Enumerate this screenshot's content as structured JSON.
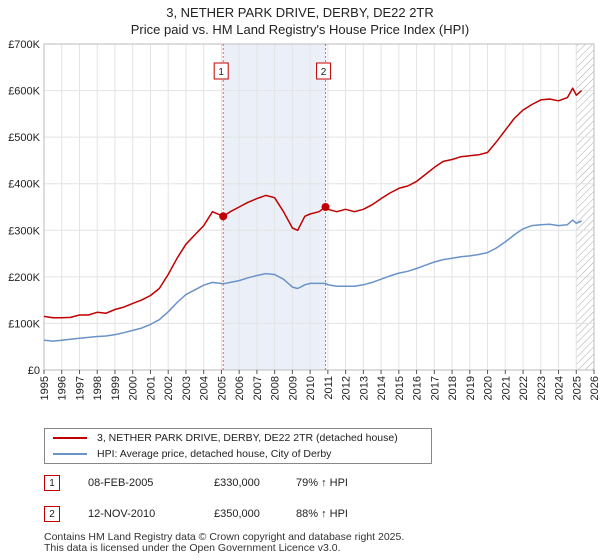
{
  "title_line1": "3, NETHER PARK DRIVE, DERBY, DE22 2TR",
  "title_line2": "Price paid vs. HM Land Registry's House Price Index (HPI)",
  "chart_data": {
    "type": "line",
    "title": "3, NETHER PARK DRIVE, DERBY, DE22 2TR — Price paid vs. HM Land Registry's House Price Index (HPI)",
    "xlabel": "",
    "ylabel": "",
    "xlim": [
      1995,
      2026
    ],
    "ylim": [
      0,
      700000
    ],
    "x_ticks": [
      "1995",
      "1996",
      "1997",
      "1998",
      "1999",
      "2000",
      "2001",
      "2002",
      "2003",
      "2004",
      "2005",
      "2006",
      "2007",
      "2008",
      "2009",
      "2010",
      "2011",
      "2012",
      "2013",
      "2014",
      "2015",
      "2016",
      "2017",
      "2018",
      "2019",
      "2020",
      "2021",
      "2022",
      "2023",
      "2024",
      "2025",
      "2026"
    ],
    "y_ticks": [
      {
        "value": 0,
        "label": "£0"
      },
      {
        "value": 100000,
        "label": "£100K"
      },
      {
        "value": 200000,
        "label": "£200K"
      },
      {
        "value": 300000,
        "label": "£300K"
      },
      {
        "value": 400000,
        "label": "£400K"
      },
      {
        "value": 500000,
        "label": "£500K"
      },
      {
        "value": 600000,
        "label": "£600K"
      },
      {
        "value": 700000,
        "label": "£700K"
      }
    ],
    "grid": true,
    "series": [
      {
        "name": "3, NETHER PARK DRIVE, DERBY, DE22 2TR (detached house)",
        "color": "#c00000",
        "x": [
          1995.0,
          1995.5,
          1996.0,
          1996.5,
          1997.0,
          1997.5,
          1998.0,
          1998.5,
          1999.0,
          1999.5,
          2000.0,
          2000.5,
          2001.0,
          2001.5,
          2002.0,
          2002.5,
          2003.0,
          2003.5,
          2004.0,
          2004.5,
          2005.1,
          2005.5,
          2006.0,
          2006.5,
          2007.0,
          2007.5,
          2008.0,
          2008.5,
          2009.0,
          2009.3,
          2009.7,
          2010.0,
          2010.5,
          2010.87,
          2011.0,
          2011.5,
          2012.0,
          2012.5,
          2013.0,
          2013.5,
          2014.0,
          2014.5,
          2015.0,
          2015.5,
          2016.0,
          2016.5,
          2017.0,
          2017.5,
          2018.0,
          2018.5,
          2019.0,
          2019.5,
          2020.0,
          2020.5,
          2021.0,
          2021.5,
          2022.0,
          2022.5,
          2023.0,
          2023.5,
          2024.0,
          2024.5,
          2024.8,
          2025.0,
          2025.3
        ],
        "values": [
          115000,
          112000,
          112000,
          113000,
          118000,
          118000,
          124000,
          122000,
          130000,
          135000,
          143000,
          150000,
          160000,
          175000,
          205000,
          240000,
          270000,
          290000,
          310000,
          340000,
          330000,
          340000,
          350000,
          360000,
          368000,
          375000,
          370000,
          340000,
          305000,
          300000,
          330000,
          335000,
          340000,
          350000,
          345000,
          340000,
          345000,
          340000,
          345000,
          355000,
          368000,
          380000,
          390000,
          395000,
          405000,
          420000,
          435000,
          448000,
          452000,
          458000,
          460000,
          462000,
          467000,
          490000,
          515000,
          540000,
          558000,
          570000,
          580000,
          582000,
          578000,
          585000,
          605000,
          590000,
          600000
        ]
      },
      {
        "name": "HPI: Average price, detached house, City of Derby",
        "color": "#6a93c8",
        "x": [
          1995.0,
          1995.5,
          1996.0,
          1996.5,
          1997.0,
          1997.5,
          1998.0,
          1998.5,
          1999.0,
          1999.5,
          2000.0,
          2000.5,
          2001.0,
          2001.5,
          2002.0,
          2002.5,
          2003.0,
          2003.5,
          2004.0,
          2004.5,
          2005.1,
          2005.5,
          2006.0,
          2006.5,
          2007.0,
          2007.5,
          2008.0,
          2008.5,
          2009.0,
          2009.3,
          2009.7,
          2010.0,
          2010.5,
          2010.87,
          2011.0,
          2011.5,
          2012.0,
          2012.5,
          2013.0,
          2013.5,
          2014.0,
          2014.5,
          2015.0,
          2015.5,
          2016.0,
          2016.5,
          2017.0,
          2017.5,
          2018.0,
          2018.5,
          2019.0,
          2019.5,
          2020.0,
          2020.5,
          2021.0,
          2021.5,
          2022.0,
          2022.5,
          2023.0,
          2023.5,
          2024.0,
          2024.5,
          2024.8,
          2025.0,
          2025.3
        ],
        "values": [
          64000,
          62000,
          64000,
          66000,
          68000,
          70000,
          72000,
          73000,
          76000,
          80000,
          85000,
          90000,
          98000,
          108000,
          125000,
          145000,
          162000,
          172000,
          182000,
          188000,
          185000,
          188000,
          192000,
          198000,
          203000,
          207000,
          205000,
          195000,
          178000,
          175000,
          183000,
          186000,
          186000,
          186000,
          183000,
          180000,
          180000,
          180000,
          183000,
          188000,
          195000,
          202000,
          208000,
          212000,
          218000,
          225000,
          232000,
          237000,
          240000,
          243000,
          245000,
          248000,
          252000,
          262000,
          275000,
          290000,
          303000,
          310000,
          312000,
          313000,
          310000,
          312000,
          322000,
          315000,
          320000
        ]
      }
    ],
    "annotations": [
      {
        "label": "1",
        "x": 2005.1,
        "value": 330000
      },
      {
        "label": "2",
        "x": 2010.87,
        "value": 350000
      }
    ],
    "shaded_region": [
      2005.1,
      2010.87
    ],
    "forecast_from": 2025.0
  },
  "legend": [
    {
      "label": "3, NETHER PARK DRIVE, DERBY, DE22 2TR (detached house)",
      "color": "#c00000"
    },
    {
      "label": "HPI: Average price, detached house, City of Derby",
      "color": "#6a93c8"
    }
  ],
  "transactions": [
    {
      "num": "1",
      "date": "08-FEB-2005",
      "price": "£330,000",
      "hpi": "79% ↑ HPI"
    },
    {
      "num": "2",
      "date": "12-NOV-2010",
      "price": "£350,000",
      "hpi": "88% ↑ HPI"
    }
  ],
  "footer_line1": "Contains HM Land Registry data © Crown copyright and database right 2025.",
  "footer_line2": "This data is licensed under the Open Government Licence v3.0."
}
